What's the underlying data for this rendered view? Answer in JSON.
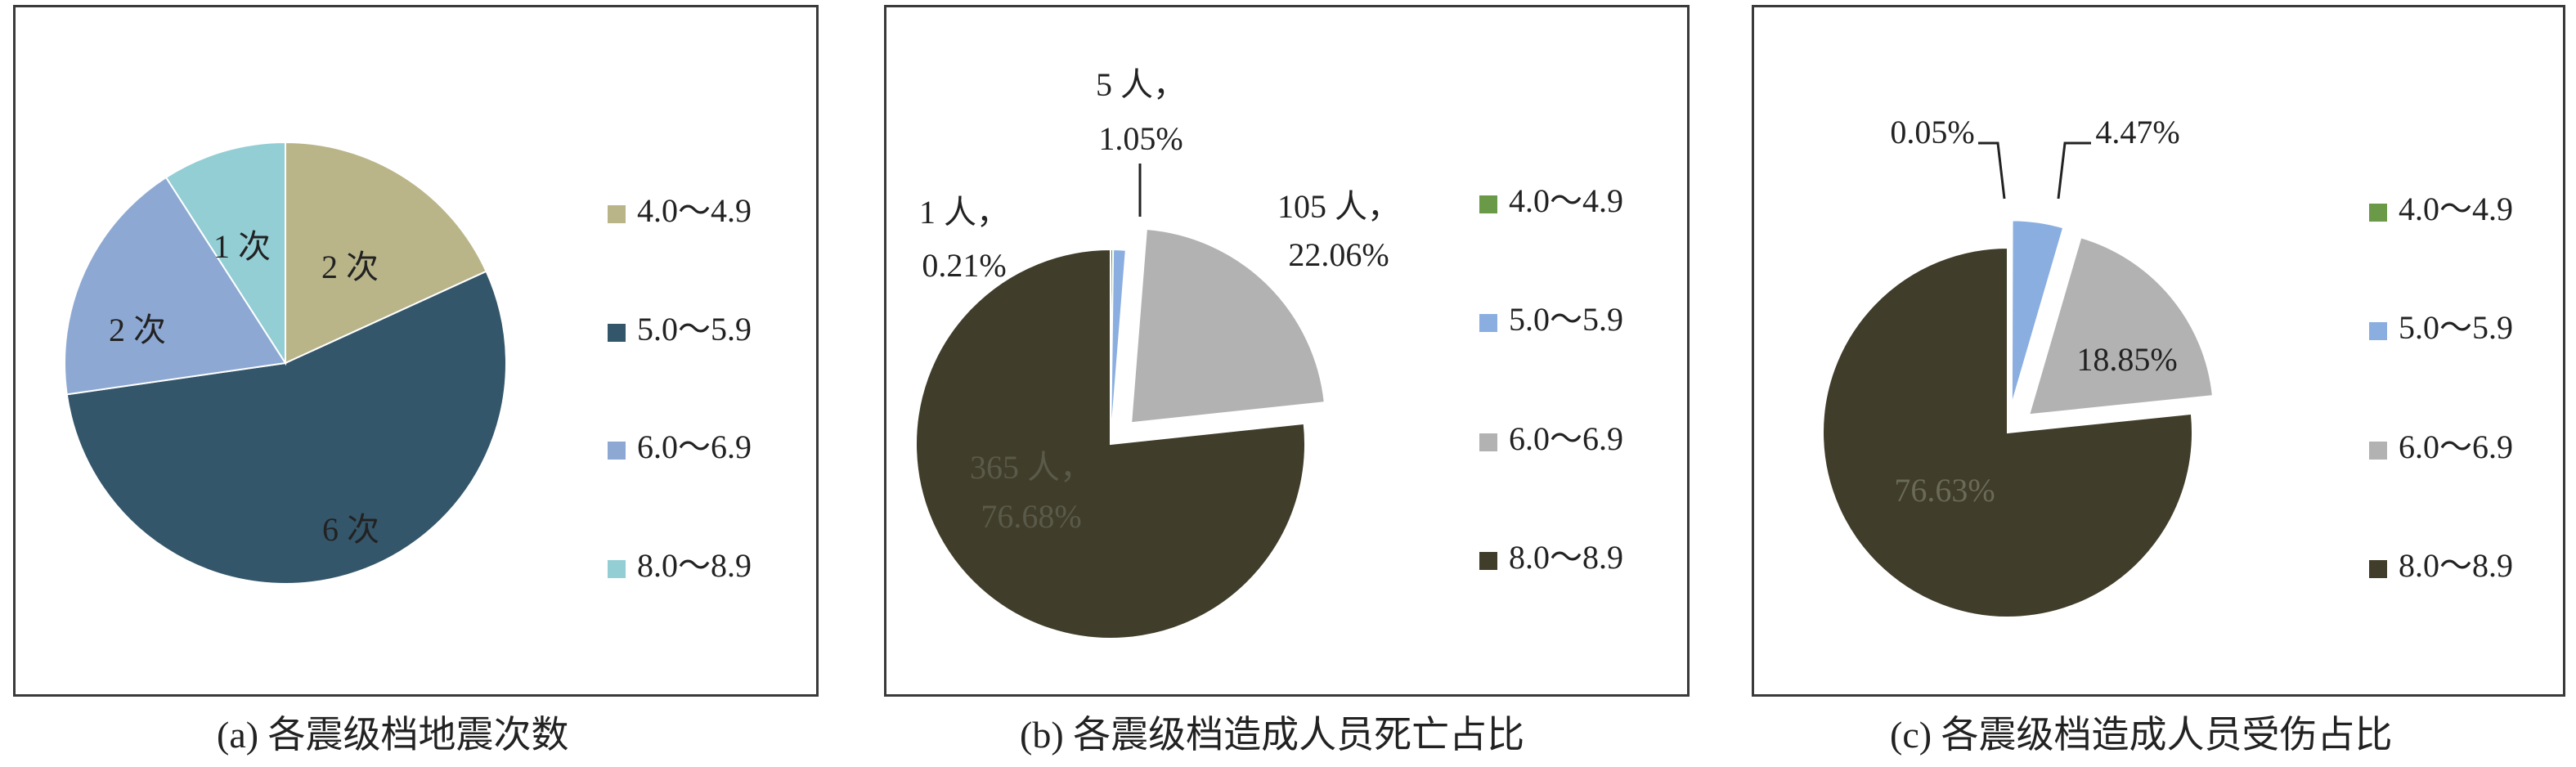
{
  "chart_data": [
    {
      "type": "pie",
      "caption": "(a) 各震级档地震次数",
      "legend_position": "right",
      "slices": [
        {
          "legend": "4.0～4.9",
          "value": 2,
          "label": "2 次",
          "color": "#B9B589"
        },
        {
          "legend": "5.0～5.9",
          "value": 6,
          "label": "6 次",
          "color": "#34566A"
        },
        {
          "legend": "6.0～6.9",
          "value": 2,
          "label": "2 次",
          "color": "#8DA9D3"
        },
        {
          "legend": "8.0～8.9",
          "value": 1,
          "label": "1 次",
          "color": "#93CED5"
        }
      ]
    },
    {
      "type": "pie",
      "caption": "(b) 各震级档造成人员死亡占比",
      "legend_position": "right",
      "exploded": true,
      "slices": [
        {
          "legend": "4.0～4.9",
          "value": 1,
          "percent": 0.21,
          "label_lines": [
            "1 人，",
            "0.21%"
          ],
          "color": "#6A9A47"
        },
        {
          "legend": "5.0～5.9",
          "value": 5,
          "percent": 1.05,
          "label_lines": [
            "5 人，",
            "1.05%"
          ],
          "color": "#8AAEE0"
        },
        {
          "legend": "6.0～6.9",
          "value": 105,
          "percent": 22.06,
          "label_lines": [
            "105 人，",
            "22.06%"
          ],
          "color": "#B2B2B2"
        },
        {
          "legend": "8.0～8.9",
          "value": 365,
          "percent": 76.68,
          "label_lines": [
            "365 人，",
            "76.68%"
          ],
          "color": "#403D2A"
        }
      ]
    },
    {
      "type": "pie",
      "caption": "(c) 各震级档造成人员受伤占比",
      "legend_position": "right",
      "exploded": true,
      "slices": [
        {
          "legend": "4.0～4.9",
          "percent": 0.05,
          "label_lines": [
            "0.05%"
          ],
          "color": "#6A9A47"
        },
        {
          "legend": "5.0～5.9",
          "percent": 4.47,
          "label_lines": [
            "4.47%"
          ],
          "color": "#8AAEE0"
        },
        {
          "legend": "6.0～6.9",
          "percent": 18.85,
          "label_lines": [
            "18.85%"
          ],
          "color": "#B2B2B2"
        },
        {
          "legend": "8.0～8.9",
          "percent": 76.63,
          "label_lines": [
            "76.63%"
          ],
          "color": "#403D2A"
        }
      ]
    }
  ]
}
